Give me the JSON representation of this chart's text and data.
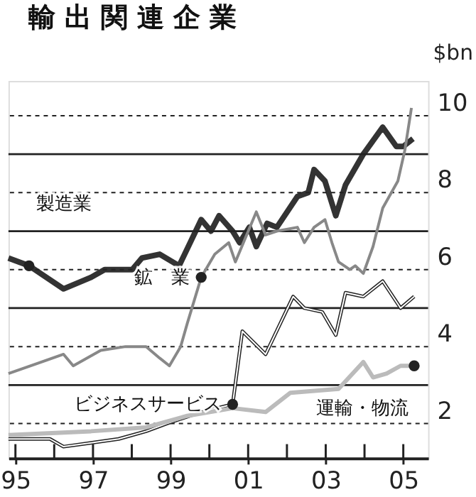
{
  "chart_data": {
    "type": "line",
    "title": "輸出関連企業",
    "ylabel": "$bn",
    "xlim": [
      1994.82,
      2005.64
    ],
    "ylim": [
      1.1,
      10.9
    ],
    "xticks": [
      {
        "value": 1995,
        "label": "95"
      },
      {
        "value": 1996,
        "label": null
      },
      {
        "value": 1997,
        "label": "97"
      },
      {
        "value": 1998,
        "label": null
      },
      {
        "value": 1999,
        "label": "99"
      },
      {
        "value": 2000,
        "label": null
      },
      {
        "value": 2001,
        "label": "01"
      },
      {
        "value": 2002,
        "label": null
      },
      {
        "value": 2003,
        "label": "03"
      },
      {
        "value": 2004,
        "label": null
      },
      {
        "value": 2005,
        "label": "05"
      }
    ],
    "yticks": [
      2,
      {
        "value": 3,
        "label": null
      },
      4,
      {
        "value": 5,
        "label": null
      },
      6,
      {
        "value": 7,
        "label": null
      },
      8,
      {
        "value": 9,
        "label": null
      },
      10
    ],
    "grid": "y",
    "legend": false,
    "line_style": "solid",
    "marker": "none",
    "series": [
      {
        "name": "製造業",
        "color": "#333333",
        "x": [
          1994.82,
          1995.35,
          1996.24,
          1996.95,
          1997.3,
          1998.01,
          1998.26,
          1998.72,
          1999.22,
          1999.79,
          2000.04,
          2000.25,
          2000.6,
          2000.78,
          2001.03,
          2001.21,
          2001.49,
          2001.74,
          2002.27,
          2002.55,
          2002.7,
          2002.98,
          2003.26,
          2003.51,
          2003.97,
          2004.47,
          2004.82,
          2005.0,
          2005.25
        ],
        "values": [
          6.3,
          6.1,
          5.5,
          5.8,
          6.0,
          6.0,
          6.3,
          6.4,
          6.1,
          7.3,
          7.0,
          7.4,
          7.0,
          6.7,
          7.1,
          6.6,
          7.2,
          7.1,
          7.9,
          8.0,
          8.6,
          8.3,
          7.4,
          8.2,
          9.0,
          9.7,
          9.2,
          9.2,
          9.4
        ]
      },
      {
        "name": "鉱　業",
        "color": "#888888",
        "x": [
          1994.82,
          1996.24,
          1996.49,
          1997.2,
          1997.84,
          1998.37,
          1998.72,
          1998.97,
          1999.26,
          1999.43,
          1999.79,
          2000.14,
          2000.5,
          2000.67,
          2001.21,
          2001.45,
          2001.74,
          2002.27,
          2002.45,
          2002.7,
          2002.98,
          2003.16,
          2003.33,
          2003.62,
          2003.76,
          2003.97,
          2004.22,
          2004.47,
          2004.86,
          2005.04,
          2005.21
        ],
        "values": [
          3.3,
          3.8,
          3.5,
          3.9,
          4.0,
          4.0,
          3.7,
          3.5,
          4.0,
          4.6,
          5.8,
          6.4,
          6.7,
          6.2,
          7.5,
          6.9,
          7.0,
          7.1,
          6.7,
          7.1,
          7.3,
          6.7,
          6.2,
          6.0,
          6.1,
          5.9,
          6.6,
          7.6,
          8.3,
          9.1,
          10.2
        ]
      },
      {
        "name": "ビジネスサービス",
        "color": "#ffffff",
        "x": [
          1994.82,
          1995.89,
          1996.24,
          1996.95,
          1997.66,
          1998.37,
          1998.9,
          1999.79,
          2000.6,
          2000.85,
          2001.45,
          2002.16,
          2002.45,
          2002.91,
          2003.26,
          2003.51,
          2003.97,
          2004.47,
          2004.93,
          2005.28
        ],
        "values": [
          1.6,
          1.6,
          1.4,
          1.5,
          1.6,
          1.8,
          2.0,
          2.3,
          2.5,
          4.4,
          3.8,
          5.3,
          5.0,
          4.9,
          4.3,
          5.4,
          5.3,
          5.7,
          5.0,
          5.3
        ]
      },
      {
        "name": "運輸・物流",
        "color": "#bbbbbb",
        "x": [
          1994.82,
          1996.95,
          1998.37,
          1999.43,
          2000.6,
          2001.45,
          2002.09,
          2003.33,
          2003.97,
          2004.22,
          2004.57,
          2004.93,
          2005.28
        ],
        "values": [
          1.7,
          1.8,
          1.9,
          2.2,
          2.4,
          2.3,
          2.8,
          2.9,
          3.6,
          3.2,
          3.3,
          3.5,
          3.5
        ]
      }
    ]
  }
}
